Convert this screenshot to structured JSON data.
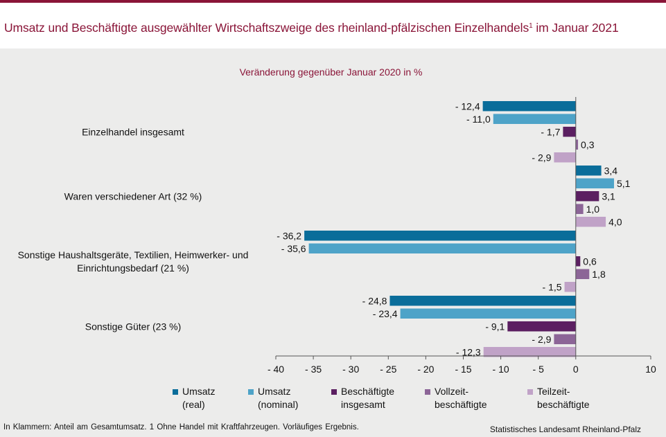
{
  "header": {
    "title": "Umsatz und Beschäftigte ausgewählter Wirtschaftszweige des rheinland-pfälzischen Einzelhandels",
    "title_sup": "1",
    "title_suffix": " im Januar 2021"
  },
  "chart_data": {
    "type": "bar",
    "orientation": "horizontal",
    "subtitle": "Veränderung gegenüber Januar 2020 in %",
    "xlim": [
      -40,
      10
    ],
    "xticks": [
      -40,
      -35,
      -30,
      -25,
      -20,
      -15,
      -10,
      -5,
      0,
      10
    ],
    "xtick_labels": [
      "- 40",
      "- 35",
      "- 30",
      "- 25",
      "- 20",
      "- 15",
      "- 10",
      "- 5",
      "0",
      "10"
    ],
    "categories": [
      [
        "Einzelhandel insgesamt"
      ],
      [
        "Waren verschiedener Art (32 %)"
      ],
      [
        "Sonstige Haushaltsgeräte, Textilien, Heimwerker- und",
        "Einrichtungsbedarf (21 %)"
      ],
      [
        "Sonstige Güter (23 %)"
      ]
    ],
    "series": [
      {
        "name": "Umsatz (real)",
        "legend": [
          "Umsatz",
          "(real)"
        ],
        "color": "#0a6d9a",
        "values": [
          -12.4,
          3.4,
          -36.2,
          -24.8
        ],
        "labels": [
          "- 12,4",
          "3,4",
          "- 36,2",
          "- 24,8"
        ]
      },
      {
        "name": "Umsatz (nominal)",
        "legend": [
          "Umsatz",
          "(nominal)"
        ],
        "color": "#4ea3c8",
        "values": [
          -11.0,
          5.1,
          -35.6,
          -23.4
        ],
        "labels": [
          "- 11,0",
          "5,1",
          "- 35,6",
          "- 23,4"
        ]
      },
      {
        "name": "Beschäftigte insgesamt",
        "legend": [
          "Beschäftigte",
          "insgesamt"
        ],
        "color": "#5b1f61",
        "values": [
          -1.7,
          3.1,
          0.6,
          -9.1
        ],
        "labels": [
          "- 1,7",
          "3,1",
          "0,6",
          "- 9,1"
        ]
      },
      {
        "name": "Vollzeit-beschäftigte",
        "legend": [
          "Vollzeit-",
          "beschäftigte"
        ],
        "color": "#8c6597",
        "values": [
          0.3,
          1.0,
          1.8,
          -2.9
        ],
        "labels": [
          "0,3",
          "1,0",
          "1,8",
          "- 2,9"
        ]
      },
      {
        "name": "Teilzeit-beschäftigte",
        "legend": [
          "Teilzeit-",
          "beschäftigte"
        ],
        "color": "#c0a2c7",
        "values": [
          -2.9,
          4.0,
          -1.5,
          -12.3
        ],
        "labels": [
          "- 2,9",
          "4,0",
          "- 1,5",
          "- 12,3"
        ]
      }
    ]
  },
  "footer": {
    "note": "In Klammern: Anteil am Gesamtumsatz. 1 Ohne Handel mit Kraftfahrzeugen. Vorläufiges Ergebnis.",
    "source": "Statistisches Landesamt Rheinland-Pfalz"
  }
}
